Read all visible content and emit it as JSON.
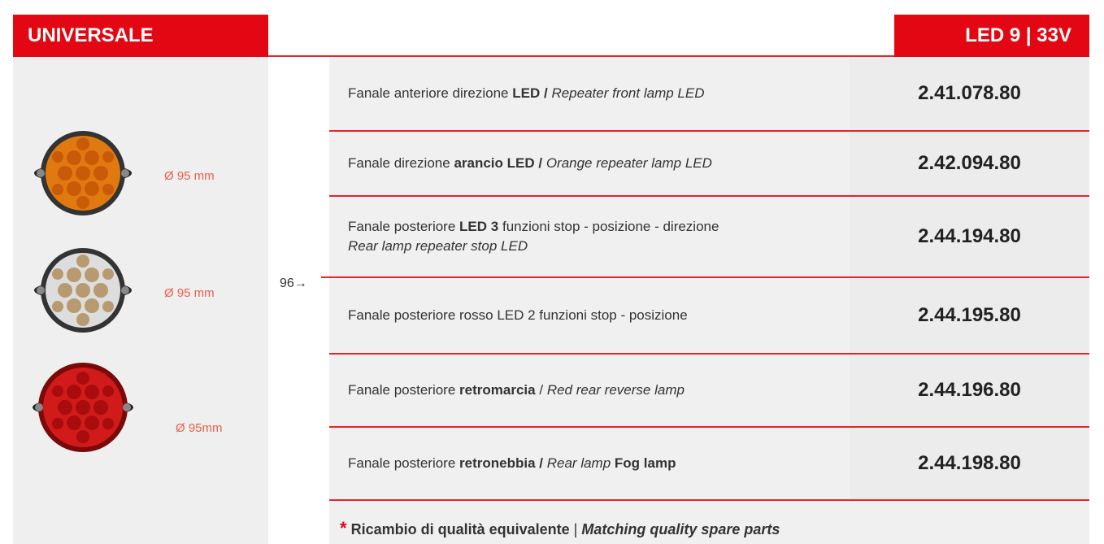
{
  "header": {
    "title": "UNIVERSALE",
    "spec": "LED 9 | 33V"
  },
  "images": [
    {
      "label": "Ø 95 mm"
    },
    {
      "label": "Ø 95 mm"
    },
    {
      "label": "Ø 95mm"
    }
  ],
  "page_ref": "96→",
  "rows": [
    {
      "parts": [
        "Fanale anteriore direzione",
        "LED /",
        "Repeater front lamp LED"
      ],
      "code": "2.41.078.80"
    },
    {
      "parts": [
        "Fanale direzione",
        "arancio LED /",
        "Orange repeater lamp LED"
      ],
      "code": "2.42.094.80"
    },
    {
      "parts": [
        "Fanale posteriore",
        "LED 3",
        "funzioni stop - posizione - direzione",
        "Rear lamp repeater stop LED"
      ],
      "code": "2.44.194.80"
    },
    {
      "parts": [
        "Fanale posteriore rosso LED 2 funzioni stop - posizione"
      ],
      "code": "2.44.195.80"
    },
    {
      "parts": [
        "Fanale posteriore",
        "retromarcia",
        "/",
        "Red rear reverse lamp"
      ],
      "code": "2.44.196.80"
    },
    {
      "parts": [
        "Fanale posteriore",
        "retronebbia /",
        "Rear lamp",
        "Fog lamp"
      ],
      "code": "2.44.198.80"
    }
  ],
  "footer": {
    "star": "*",
    "text": "Ricambio di qualità equivalente",
    "sep": "|",
    "translation": "Matching quality spare parts"
  }
}
